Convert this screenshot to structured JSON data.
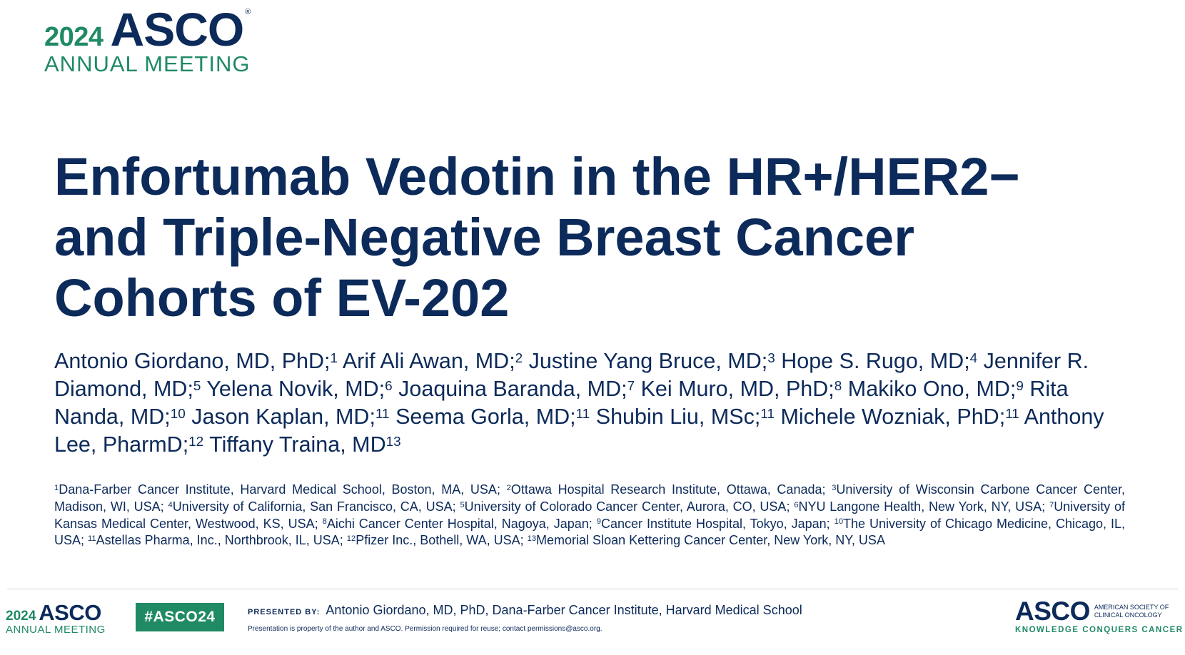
{
  "header_logo": {
    "year": "2024",
    "brand": "ASCO",
    "registered": "®",
    "meeting": "ANNUAL MEETING"
  },
  "title": {
    "line1": "Enfortumab Vedotin in the HR+/HER2−",
    "line2": "and Triple-Negative Breast Cancer",
    "line3": "Cohorts of EV-202"
  },
  "authors": [
    {
      "name": "Antonio Giordano, MD, PhD;",
      "sup": "1"
    },
    {
      "name": "Arif Ali Awan, MD;",
      "sup": "2"
    },
    {
      "name": "Justine Yang Bruce, MD;",
      "sup": "3"
    },
    {
      "name": "Hope S. Rugo, MD;",
      "sup": "4"
    },
    {
      "name": "Jennifer R. Diamond, MD;",
      "sup": "5"
    },
    {
      "name": "Yelena Novik, MD;",
      "sup": "6"
    },
    {
      "name": "Joaquina Baranda, MD;",
      "sup": "7"
    },
    {
      "name": "Kei Muro, MD, PhD;",
      "sup": "8"
    },
    {
      "name": "Makiko Ono, MD;",
      "sup": "9"
    },
    {
      "name": "Rita Nanda, MD;",
      "sup": "10"
    },
    {
      "name": "Jason Kaplan, MD;",
      "sup": "11"
    },
    {
      "name": "Seema Gorla, MD;",
      "sup": "11"
    },
    {
      "name": "Shubin Liu, MSc;",
      "sup": "11"
    },
    {
      "name": "Michele Wozniak, PhD;",
      "sup": "11"
    },
    {
      "name": "Anthony Lee, PharmD;",
      "sup": "12"
    },
    {
      "name": "Tiffany Traina, MD",
      "sup": "13"
    }
  ],
  "affiliations": [
    {
      "sup": "1",
      "text": "Dana-Farber Cancer Institute, Harvard Medical School, Boston, MA, USA;"
    },
    {
      "sup": "2",
      "text": "Ottawa Hospital Research Institute, Ottawa, Canada;"
    },
    {
      "sup": "3",
      "text": "University of Wisconsin Carbone Cancer Center, Madison, WI, USA;"
    },
    {
      "sup": "4",
      "text": "University of California, San Francisco, CA, USA;"
    },
    {
      "sup": "5",
      "text": "University of Colorado Cancer Center, Aurora, CO, USA;"
    },
    {
      "sup": "6",
      "text": "NYU Langone Health, New York, NY, USA;"
    },
    {
      "sup": "7",
      "text": "University of Kansas Medical Center, Westwood, KS, USA;"
    },
    {
      "sup": "8",
      "text": "Aichi Cancer Center Hospital, Nagoya, Japan;"
    },
    {
      "sup": "9",
      "text": "Cancer Institute Hospital, Tokyo, Japan;"
    },
    {
      "sup": "10",
      "text": "The University of Chicago Medicine, Chicago, IL, USA;"
    },
    {
      "sup": "11",
      "text": "Astellas Pharma, Inc., Northbrook, IL, USA;"
    },
    {
      "sup": "12",
      "text": "Pfizer Inc., Bothell, WA, USA;"
    },
    {
      "sup": "13",
      "text": "Memorial Sloan Kettering Cancer Center, New York, NY, USA"
    }
  ],
  "footer": {
    "logo_year": "2024",
    "logo_brand": "ASCO",
    "logo_meeting": "ANNUAL MEETING",
    "hashtag": "#ASCO24",
    "presented_label": "PRESENTED BY:",
    "presenter": "Antonio Giordano, MD, PhD, Dana-Farber Cancer Institute, Harvard Medical School",
    "property_notice": "Presentation is property of the author and ASCO. Permission required for reuse; contact permissions@asco.org.",
    "brand": "ASCO",
    "society_line1": "American Society of",
    "society_line2": "Clinical Oncology",
    "tagline": "KNOWLEDGE CONQUERS CANCER"
  },
  "colors": {
    "navy": "#0c2a5a",
    "green": "#1f8a63"
  }
}
